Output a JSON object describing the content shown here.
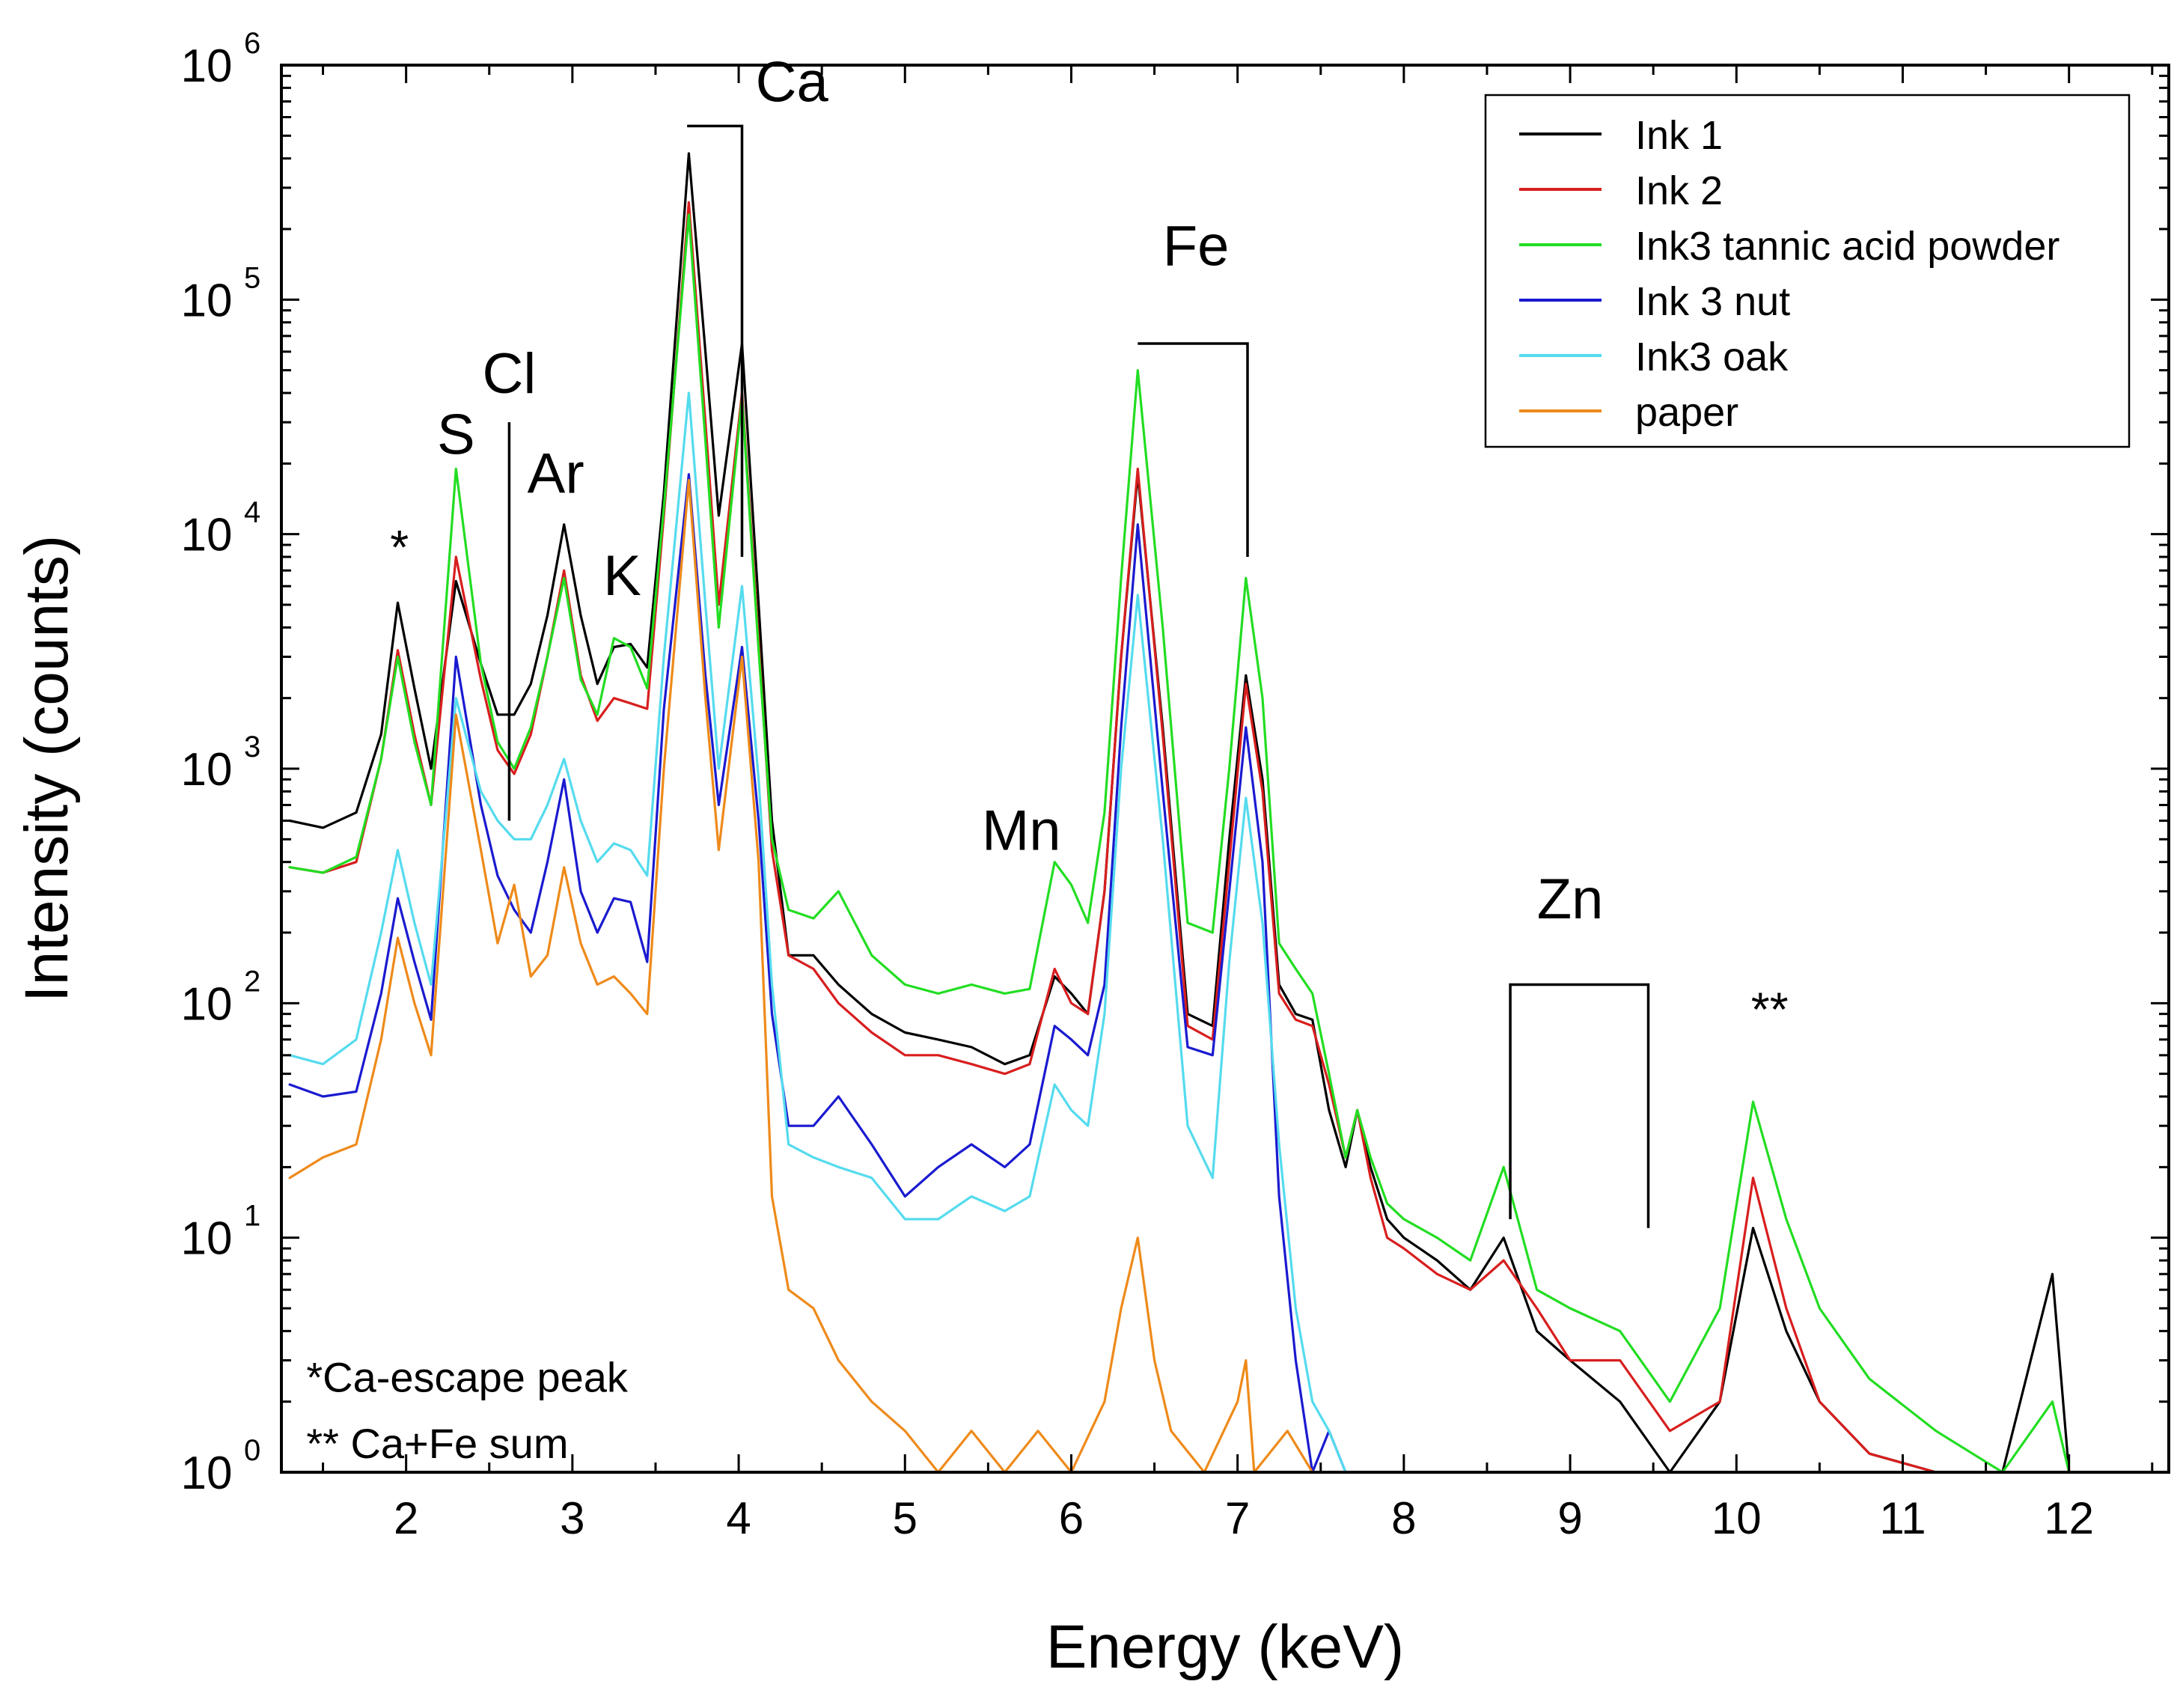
{
  "chart_data": {
    "type": "line",
    "title": "",
    "xlabel": "Energy (keV)",
    "ylabel": "Intensity (counts)",
    "yscale": "log",
    "xlim": [
      1.25,
      12.6
    ],
    "ylim": [
      1,
      1000000
    ],
    "x_ticks": [
      2,
      3,
      4,
      5,
      6,
      7,
      8,
      9,
      10,
      11,
      12
    ],
    "x_tick_labels": [
      "2",
      "3",
      "4",
      "5",
      "6",
      "7",
      "8",
      "9",
      "10",
      "11",
      "12"
    ],
    "y_ticks": [
      {
        "value": 1,
        "base": "10",
        "exp": "0"
      },
      {
        "value": 10,
        "base": "10",
        "exp": "1"
      },
      {
        "value": 100,
        "base": "10",
        "exp": "2"
      },
      {
        "value": 1000,
        "base": "10",
        "exp": "3"
      },
      {
        "value": 10000,
        "base": "10",
        "exp": "4"
      },
      {
        "value": 100000,
        "base": "10",
        "exp": "5"
      },
      {
        "value": 1000000,
        "base": "10",
        "exp": "6"
      }
    ],
    "legend_position": "top-right",
    "series": [
      {
        "name": "Ink 1",
        "color": "#000000",
        "x": [
          1.3,
          1.5,
          1.7,
          1.85,
          1.95,
          2.05,
          2.15,
          2.3,
          2.45,
          2.55,
          2.65,
          2.75,
          2.85,
          2.95,
          3.05,
          3.15,
          3.25,
          3.35,
          3.45,
          3.55,
          3.7,
          3.8,
          3.88,
          4.02,
          4.12,
          4.2,
          4.3,
          4.45,
          4.6,
          4.8,
          5.0,
          5.2,
          5.4,
          5.6,
          5.75,
          5.9,
          6.0,
          6.1,
          6.2,
          6.3,
          6.4,
          6.55,
          6.7,
          6.85,
          6.95,
          7.05,
          7.15,
          7.25,
          7.35,
          7.45,
          7.55,
          7.65,
          7.72,
          7.8,
          7.9,
          8.0,
          8.2,
          8.4,
          8.6,
          8.8,
          9.0,
          9.3,
          9.6,
          9.9,
          10.1,
          10.3,
          10.5,
          10.8,
          11.2,
          11.6,
          11.9,
          12.0
        ],
        "y": [
          600,
          560,
          650,
          1400,
          5100,
          2200,
          1000,
          6300,
          2800,
          1700,
          1700,
          2300,
          4500,
          11000,
          4500,
          2300,
          3300,
          3400,
          2700,
          15000,
          420000,
          60000,
          12000,
          65000,
          5000,
          600,
          160,
          160,
          120,
          90,
          75,
          70,
          65,
          55,
          60,
          130,
          110,
          90,
          300,
          3000,
          18000,
          1500,
          90,
          80,
          500,
          2500,
          900,
          120,
          90,
          85,
          35,
          20,
          35,
          20,
          12,
          10,
          8,
          6,
          10,
          4,
          3,
          2,
          1,
          2,
          11,
          4,
          2,
          1.2,
          1,
          1,
          7,
          1
        ]
      },
      {
        "name": "Ink 2",
        "color": "#d81e1e",
        "x": [
          1.3,
          1.5,
          1.7,
          1.85,
          1.95,
          2.05,
          2.15,
          2.3,
          2.45,
          2.55,
          2.65,
          2.75,
          2.85,
          2.95,
          3.05,
          3.15,
          3.25,
          3.35,
          3.45,
          3.55,
          3.7,
          3.8,
          3.88,
          4.02,
          4.12,
          4.2,
          4.3,
          4.45,
          4.6,
          4.8,
          5.0,
          5.2,
          5.4,
          5.6,
          5.75,
          5.9,
          6.0,
          6.1,
          6.2,
          6.3,
          6.4,
          6.55,
          6.7,
          6.85,
          6.95,
          7.05,
          7.15,
          7.25,
          7.35,
          7.45,
          7.55,
          7.65,
          7.72,
          7.8,
          7.9,
          8.0,
          8.2,
          8.4,
          8.6,
          8.8,
          9.0,
          9.3,
          9.6,
          9.9,
          10.1,
          10.3,
          10.5,
          10.8,
          11.2,
          11.6,
          11.9,
          12.0
        ],
        "y": [
          380,
          360,
          400,
          1100,
          3200,
          1400,
          700,
          8000,
          2400,
          1200,
          950,
          1400,
          3000,
          7000,
          2500,
          1600,
          2000,
          1900,
          1800,
          12000,
          260000,
          30000,
          5000,
          40000,
          3500,
          450,
          160,
          140,
          100,
          75,
          60,
          60,
          55,
          50,
          55,
          140,
          100,
          90,
          300,
          3000,
          19000,
          1400,
          80,
          70,
          400,
          2300,
          800,
          110,
          85,
          80,
          45,
          22,
          35,
          18,
          10,
          9,
          7,
          6,
          8,
          5,
          3,
          3,
          1.5,
          2,
          18,
          5,
          2,
          1.2,
          1,
          1,
          1,
          1
        ]
      },
      {
        "name": "Ink3 tannic acid powder",
        "color": "#22dd22",
        "x": [
          1.3,
          1.5,
          1.7,
          1.85,
          1.95,
          2.05,
          2.15,
          2.3,
          2.45,
          2.55,
          2.65,
          2.75,
          2.85,
          2.95,
          3.05,
          3.15,
          3.25,
          3.35,
          3.45,
          3.55,
          3.7,
          3.8,
          3.88,
          4.02,
          4.12,
          4.2,
          4.3,
          4.45,
          4.6,
          4.8,
          5.0,
          5.2,
          5.4,
          5.6,
          5.75,
          5.9,
          6.0,
          6.1,
          6.2,
          6.3,
          6.4,
          6.55,
          6.7,
          6.85,
          6.95,
          7.05,
          7.15,
          7.25,
          7.35,
          7.45,
          7.55,
          7.65,
          7.72,
          7.8,
          7.9,
          8.0,
          8.2,
          8.4,
          8.6,
          8.8,
          9.0,
          9.3,
          9.6,
          9.9,
          10.1,
          10.3,
          10.5,
          10.8,
          11.2,
          11.6,
          11.9,
          12.0,
          12.15
        ],
        "y": [
          380,
          360,
          420,
          1100,
          3000,
          1300,
          700,
          19000,
          2800,
          1300,
          1000,
          1500,
          3000,
          6500,
          2400,
          1700,
          3600,
          3300,
          2200,
          13000,
          230000,
          25000,
          4000,
          38000,
          3200,
          500,
          250,
          230,
          300,
          160,
          120,
          110,
          120,
          110,
          115,
          400,
          320,
          220,
          650,
          6500,
          50000,
          4000,
          220,
          200,
          1000,
          6500,
          2000,
          180,
          140,
          110,
          50,
          22,
          35,
          22,
          14,
          12,
          10,
          8,
          20,
          6,
          5,
          4,
          2,
          5,
          38,
          12,
          5,
          2.5,
          1.5,
          1,
          2,
          1,
          1
        ]
      },
      {
        "name": "Ink 3 nut",
        "color": "#1a1ad0",
        "x": [
          1.3,
          1.5,
          1.7,
          1.85,
          1.95,
          2.05,
          2.15,
          2.3,
          2.45,
          2.55,
          2.65,
          2.75,
          2.85,
          2.95,
          3.05,
          3.15,
          3.25,
          3.35,
          3.45,
          3.55,
          3.7,
          3.8,
          3.88,
          4.02,
          4.12,
          4.2,
          4.3,
          4.45,
          4.6,
          4.8,
          5.0,
          5.2,
          5.4,
          5.6,
          5.75,
          5.9,
          6.0,
          6.1,
          6.2,
          6.3,
          6.4,
          6.55,
          6.7,
          6.85,
          6.95,
          7.05,
          7.15,
          7.25,
          7.35,
          7.45,
          7.55,
          7.65,
          7.8,
          8.0
        ],
        "y": [
          45,
          40,
          42,
          110,
          280,
          150,
          85,
          3000,
          700,
          350,
          250,
          200,
          400,
          900,
          300,
          200,
          280,
          270,
          150,
          1800,
          18000,
          2500,
          700,
          3300,
          600,
          90,
          30,
          30,
          40,
          25,
          15,
          20,
          25,
          20,
          25,
          80,
          70,
          60,
          120,
          1500,
          11000,
          800,
          65,
          60,
          300,
          1500,
          400,
          15,
          3,
          1,
          1.5,
          1,
          1,
          1
        ]
      },
      {
        "name": "Ink3 oak",
        "color": "#55dbee",
        "x": [
          1.3,
          1.5,
          1.7,
          1.85,
          1.95,
          2.05,
          2.15,
          2.3,
          2.45,
          2.55,
          2.65,
          2.75,
          2.85,
          2.95,
          3.05,
          3.15,
          3.25,
          3.35,
          3.45,
          3.55,
          3.7,
          3.8,
          3.88,
          4.02,
          4.12,
          4.2,
          4.3,
          4.45,
          4.6,
          4.8,
          5.0,
          5.2,
          5.4,
          5.6,
          5.75,
          5.9,
          6.0,
          6.1,
          6.2,
          6.3,
          6.4,
          6.55,
          6.7,
          6.85,
          6.95,
          7.05,
          7.15,
          7.25,
          7.35,
          7.45,
          7.55,
          7.65,
          7.8,
          8.0,
          8.2
        ],
        "y": [
          60,
          55,
          70,
          200,
          450,
          220,
          120,
          2000,
          800,
          600,
          500,
          500,
          700,
          1100,
          600,
          400,
          480,
          450,
          350,
          3000,
          40000,
          5000,
          1000,
          6000,
          900,
          120,
          25,
          22,
          20,
          18,
          12,
          12,
          15,
          13,
          15,
          45,
          35,
          30,
          90,
          1000,
          5500,
          500,
          30,
          18,
          150,
          750,
          220,
          25,
          5,
          2,
          1.5,
          1,
          1,
          1,
          1
        ]
      },
      {
        "name": "paper",
        "color": "#ee8a1a",
        "x": [
          1.3,
          1.5,
          1.7,
          1.85,
          1.95,
          2.05,
          2.15,
          2.3,
          2.45,
          2.55,
          2.65,
          2.75,
          2.85,
          2.95,
          3.05,
          3.15,
          3.25,
          3.35,
          3.45,
          3.55,
          3.7,
          3.8,
          3.88,
          4.02,
          4.12,
          4.2,
          4.3,
          4.45,
          4.6,
          4.8,
          5.0,
          5.2,
          5.4,
          5.6,
          5.8,
          6.0,
          6.2,
          6.3,
          6.4,
          6.5,
          6.6,
          6.8,
          7.0,
          7.05,
          7.1,
          7.3,
          7.45
        ],
        "y": [
          18,
          22,
          25,
          70,
          190,
          100,
          60,
          1700,
          450,
          180,
          320,
          130,
          160,
          380,
          180,
          120,
          130,
          110,
          90,
          1000,
          17000,
          2000,
          450,
          3000,
          400,
          15,
          6,
          5,
          3,
          2,
          1.5,
          1,
          1.5,
          1,
          1.5,
          1,
          2,
          5,
          10,
          3,
          1.5,
          1,
          2,
          3,
          1,
          1.5,
          1
        ]
      }
    ],
    "annotations": [
      {
        "text": "*",
        "x": 1.96,
        "y": 7500
      },
      {
        "text": "S",
        "x": 2.3,
        "y": 22000
      },
      {
        "text": "Cl",
        "x": 2.62,
        "y": 40000
      },
      {
        "text": "Ar",
        "x": 2.9,
        "y": 15000
      },
      {
        "text": "K",
        "x": 3.3,
        "y": 5500
      },
      {
        "text": "Ca",
        "x": 4.32,
        "y": 700000
      },
      {
        "text": "Fe",
        "x": 6.75,
        "y": 140000
      },
      {
        "text": "Mn",
        "x": 5.7,
        "y": 450
      },
      {
        "text": "Zn",
        "x": 9.0,
        "y": 230
      },
      {
        "text": "**",
        "x": 10.2,
        "y": 80
      },
      {
        "text": "*Ca-escape peak",
        "x": 1.4,
        "y": 2.2
      },
      {
        "text": "** Ca+Fe sum",
        "x": 1.4,
        "y": 1.15
      }
    ],
    "brackets": [
      {
        "x_left": 3.69,
        "x_right": 4.02,
        "y_top": 550000,
        "y_left": 550000,
        "y_right": 8000
      },
      {
        "x_left": 6.4,
        "x_right": 7.06,
        "y_top": 65000,
        "y_left": 65000,
        "y_right": 8000
      },
      {
        "x_left": 8.64,
        "x_right": 9.47,
        "y_top": 120,
        "y_left": 12,
        "y_right": 11
      }
    ],
    "marker_lines": [
      {
        "x": 2.62,
        "y_top": 30000,
        "y_bottom": 600
      }
    ]
  }
}
